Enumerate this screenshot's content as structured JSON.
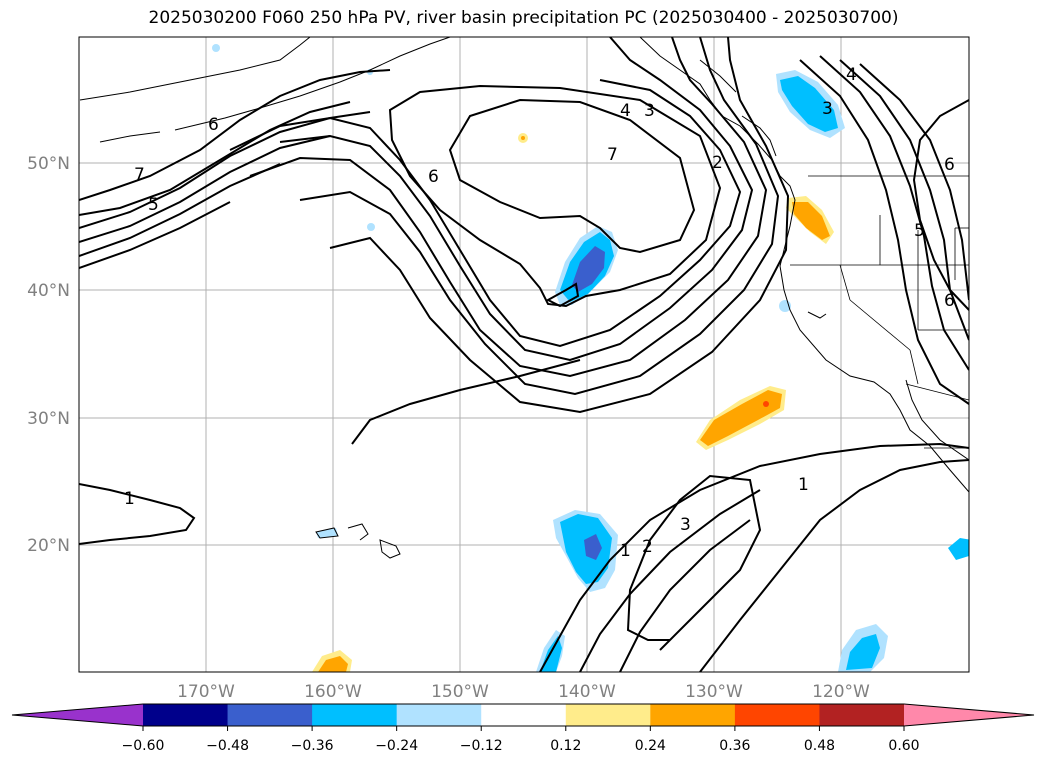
{
  "title": "2025030200 F060 250 hPa PV, river basin precipitation PC (2025030400 - 2025030700)",
  "map": {
    "lat_labels": [
      "50°N",
      "40°N",
      "30°N",
      "20°N"
    ],
    "lon_labels": [
      "170°W",
      "160°W",
      "150°W",
      "140°W",
      "130°W",
      "120°W"
    ],
    "extent": {
      "lon_min": -180,
      "lon_max": -110,
      "lat_min": 10,
      "lat_max": 60
    },
    "grid": true
  },
  "pv_contour_labels": [
    "7",
    "5",
    "6",
    "6",
    "4",
    "3",
    "7",
    "2",
    "4",
    "3",
    "5",
    "6",
    "6",
    "1",
    "1",
    "2",
    "3",
    "1"
  ],
  "colorbar": {
    "ticks": [
      "−0.60",
      "−0.48",
      "−0.36",
      "−0.24",
      "−0.12",
      "0.12",
      "0.24",
      "0.36",
      "0.48",
      "0.60"
    ],
    "colors": [
      "#9932cc",
      "#00008b",
      "#3a5fcd",
      "#00bfff",
      "#b0e2ff",
      "#ffffff",
      "#ffec8b",
      "#ffa500",
      "#ff4500",
      "#b22222",
      "#ff88aa"
    ]
  },
  "colors": {
    "shade_light_blue": "#b0e2ff",
    "shade_blue": "#00bfff",
    "shade_dark_blue": "#3a5fcd",
    "shade_yellow": "#ffec8b",
    "shade_orange": "#ffa500",
    "shade_red": "#ff4500"
  }
}
